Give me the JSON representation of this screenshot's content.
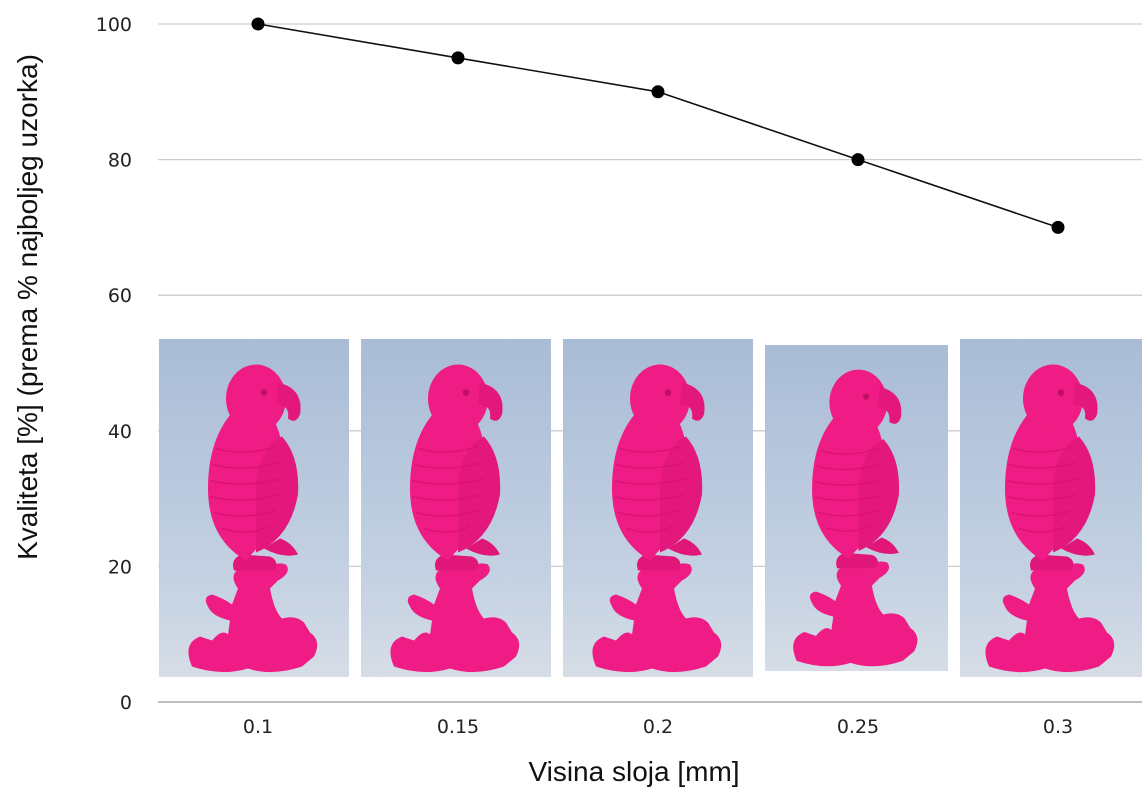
{
  "chart_data": {
    "type": "line",
    "title": "",
    "xlabel": "Visina sloja [mm]",
    "ylabel": "Kvaliteta [%] (prema % najboljeg uzorka)",
    "categories": [
      "0.1",
      "0.15",
      "0.2",
      "0.25",
      "0.3"
    ],
    "series": [
      {
        "values": [
          100,
          95,
          90,
          80,
          70
        ]
      }
    ],
    "ylim": [
      0,
      100
    ],
    "yticks": [
      "0",
      "20",
      "40",
      "60",
      "80",
      "100"
    ],
    "grid": true,
    "colors": {
      "line": "#111111",
      "marker": "#000000",
      "grid": "#cccccc",
      "photo_background": "#b9c9de",
      "parrot": "#ee1c84"
    },
    "photos": [
      {
        "icon": "pink-3d-printed-parrot-photo",
        "layer_height": "0.1"
      },
      {
        "icon": "pink-3d-printed-parrot-photo",
        "layer_height": "0.15"
      },
      {
        "icon": "pink-3d-printed-parrot-photo",
        "layer_height": "0.2"
      },
      {
        "icon": "pink-3d-printed-parrot-photo",
        "layer_height": "0.25"
      },
      {
        "icon": "pink-3d-printed-parrot-photo",
        "layer_height": "0.3"
      }
    ]
  }
}
